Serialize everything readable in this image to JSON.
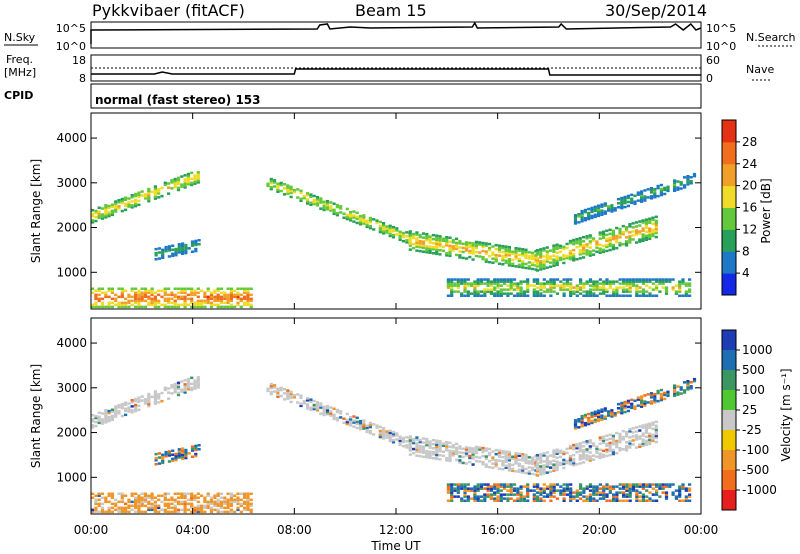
{
  "header": {
    "station": "Pykkvibaer (fitACF)",
    "beam": "Beam 15",
    "date": "30/Sep/2014"
  },
  "nsky_panel": {
    "left_label": "N.Sky",
    "left_ticks": [
      "10^5",
      "10^0"
    ],
    "right_label": "N.Search",
    "right_ticks": [
      "10^5",
      "10^0"
    ]
  },
  "freq_panel": {
    "left_label_1": "Freq.",
    "left_label_2": "[MHz]",
    "left_ticks": [
      "18",
      "8"
    ],
    "right_label": "Nave",
    "right_ticks": [
      "60",
      "0"
    ]
  },
  "cpid_panel": {
    "label": "CPID",
    "text": "normal (fast stereo) 153"
  },
  "colors": {
    "power_scale": [
      "#1428e6",
      "#1e78c8",
      "#28a05a",
      "#64c83c",
      "#f0dc28",
      "#f0a028",
      "#f06e1e",
      "#e63214"
    ],
    "velocity_scale": [
      "#1e3cb4",
      "#1e6eb4",
      "#3c9664",
      "#50c832",
      "#c8c8c8",
      "#f0c800",
      "#f09628",
      "#f06e1e",
      "#e61e1e"
    ],
    "groundscatter": "#c8c8c8"
  },
  "chart_data": [
    {
      "type": "heatmap",
      "name": "power",
      "ylabel": "Slant Range [km]",
      "y_ticks": [
        1000,
        2000,
        3000,
        4000
      ],
      "ylim": [
        180,
        4560
      ],
      "xlim": [
        0,
        24
      ],
      "colorbar": {
        "label": "Power [dB]",
        "ticks": [
          "4",
          "8",
          "12",
          "16",
          "20",
          "24",
          "28"
        ],
        "range": [
          0,
          32
        ]
      },
      "grid": false
    },
    {
      "type": "heatmap",
      "name": "velocity",
      "ylabel": "Slant Range [km]",
      "y_ticks": [
        1000,
        2000,
        3000,
        4000
      ],
      "ylim": [
        180,
        4560
      ],
      "xlim": [
        0,
        24
      ],
      "colorbar": {
        "label": "Velocity [m s⁻¹]",
        "ticks": [
          "1000",
          "500",
          "100",
          "25",
          "-25",
          "-100",
          "-500",
          "-1000"
        ]
      },
      "grid": false
    },
    {
      "type": "line",
      "name": "time_axis",
      "xlabel": "Time UT",
      "x_ticks": [
        "00:00",
        "04:00",
        "08:00",
        "12:00",
        "16:00",
        "20:00",
        "00:00"
      ],
      "x_tick_values": [
        0,
        4,
        8,
        12,
        16,
        20,
        24
      ]
    }
  ]
}
